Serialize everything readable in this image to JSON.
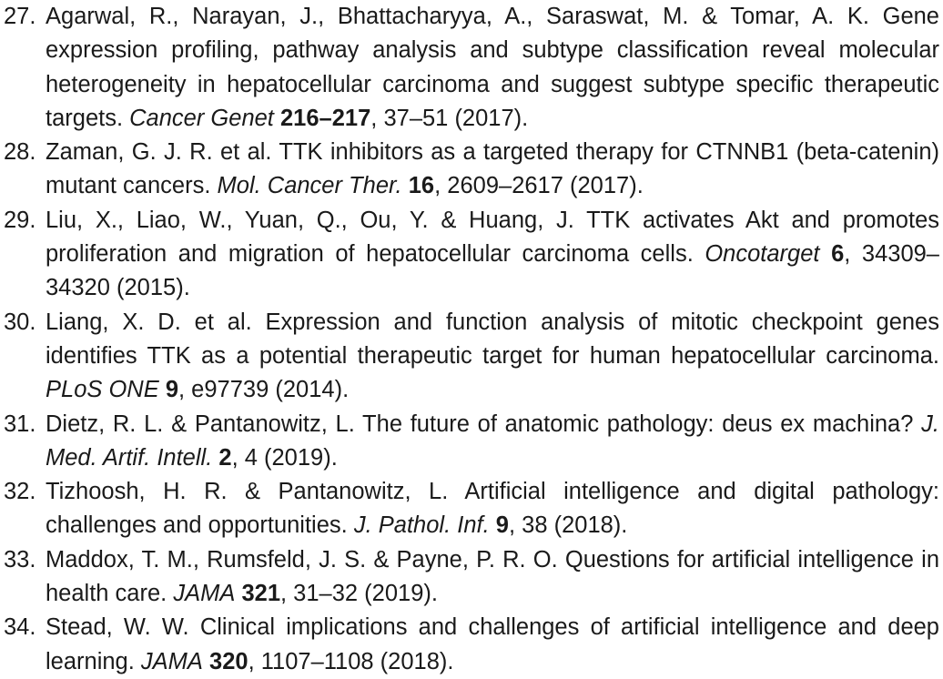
{
  "references": [
    {
      "number": "27.",
      "text": "Agarwal, R., Narayan, J., Bhattacharyya, A., Saraswat, M. & Tomar, A. K. Gene expression profiling, pathway analysis and subtype classification reveal molecular heterogeneity in hepatocellular carcinoma and suggest subtype specific ther­apeutic targets.",
      "journal": "Cancer Genet",
      "volume": "216–217",
      "rest": ", 37–51 (2017)."
    },
    {
      "number": "28.",
      "text": "Zaman, G. J. R. et al. TTK inhibitors as a targeted therapy for CTNNB1 (beta-catenin) mutant cancers.",
      "journal": "Mol. Cancer Ther.",
      "volume": "16",
      "rest": ", 2609–2617 (2017)."
    },
    {
      "number": "29.",
      "text": "Liu, X., Liao, W., Yuan, Q., Ou, Y. & Huang, J. TTK activates Akt and promotes proliferation and migration of hepatocellular carcinoma cells.",
      "journal": "Oncotarget",
      "volume": "6",
      "rest": ", 34309–34320 (2015)."
    },
    {
      "number": "30.",
      "text": "Liang, X. D. et al. Expression and function analysis of mitotic checkpoint genes identifies TTK as a potential therapeutic target for human hepatocellular carci­noma.",
      "journal": "PLoS ONE",
      "volume": "9",
      "rest": ", e97739 (2014)."
    },
    {
      "number": "31.",
      "text": "Dietz, R. L. & Pantanowitz, L. The future of anatomic pathology: deus ex machina?",
      "journal": "J. Med. Artif. Intell.",
      "volume": "2",
      "rest": ", 4 (2019)."
    },
    {
      "number": "32.",
      "text": "Tizhoosh, H. R. & Pantanowitz, L. Artificial intelligence and digital pathology: challenges and opportunities.",
      "journal": "J. Pathol. Inf.",
      "volume": "9",
      "rest": ", 38 (2018)."
    },
    {
      "number": "33.",
      "text": "Maddox, T. M., Rumsfeld, J. S. & Payne, P. R. O. Questions for artificial intelligence in health care.",
      "journal": "JAMA",
      "volume": "321",
      "rest": ", 31–32 (2019)."
    },
    {
      "number": "34.",
      "text": "Stead, W. W. Clinical implications and challenges of artificial intelligence and deep learning.",
      "journal": "JAMA",
      "volume": "320",
      "rest": ", 1107–1108 (2018)."
    }
  ]
}
